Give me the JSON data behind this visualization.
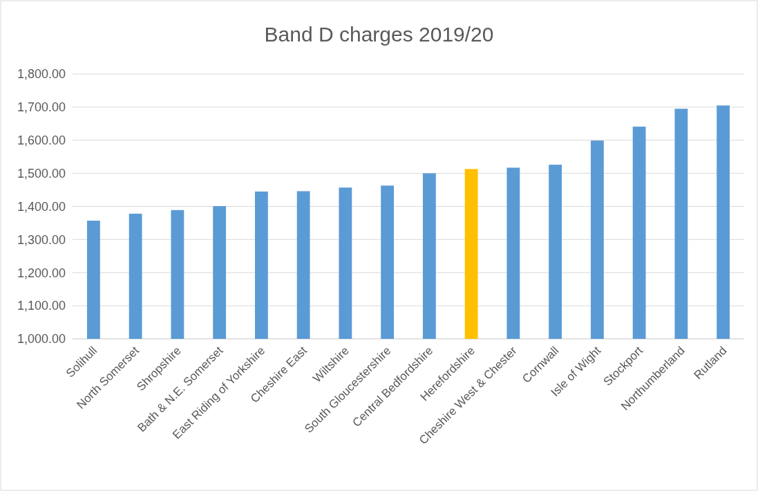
{
  "chart_data": {
    "type": "bar",
    "title": "Band D charges 2019/20",
    "categories": [
      "Solihull",
      "North Somerset",
      "Shropshire",
      "Bath & N.E. Somerset",
      "East Riding of Yorkshire",
      "Cheshire East",
      "Wiltshire",
      "South Gloucestershire",
      "Central Bedfordshire",
      "Herefordshire",
      "Cheshire West & Chester",
      "Cornwall",
      "Isle of Wight",
      "Stockport",
      "Northumberland",
      "Rutland"
    ],
    "values": [
      1357,
      1378,
      1389,
      1401,
      1445,
      1446,
      1457,
      1463,
      1500,
      1513,
      1517,
      1526,
      1599,
      1641,
      1695,
      1705
    ],
    "colors": [
      "#5b9bd5",
      "#5b9bd5",
      "#5b9bd5",
      "#5b9bd5",
      "#5b9bd5",
      "#5b9bd5",
      "#5b9bd5",
      "#5b9bd5",
      "#5b9bd5",
      "#ffc000",
      "#5b9bd5",
      "#5b9bd5",
      "#5b9bd5",
      "#5b9bd5",
      "#5b9bd5",
      "#5b9bd5"
    ],
    "ylim": [
      1000,
      1800
    ],
    "yticks": [
      {
        "value": 1000,
        "label": "1,000.00"
      },
      {
        "value": 1100,
        "label": "1,100.00"
      },
      {
        "value": 1200,
        "label": "1,200.00"
      },
      {
        "value": 1300,
        "label": "1,300.00"
      },
      {
        "value": 1400,
        "label": "1,400.00"
      },
      {
        "value": 1500,
        "label": "1,500.00"
      },
      {
        "value": 1600,
        "label": "1,600.00"
      },
      {
        "value": 1700,
        "label": "1,700.00"
      },
      {
        "value": 1800,
        "label": "1,800.00"
      }
    ],
    "grid": "y"
  }
}
